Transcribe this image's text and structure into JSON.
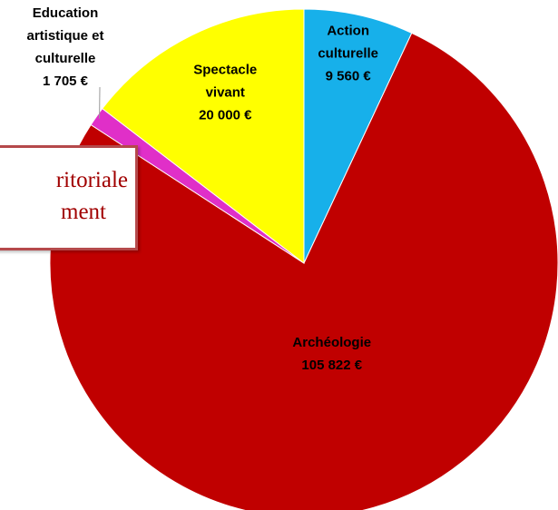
{
  "chart_data": {
    "type": "pie",
    "categories": [
      "Action culturelle",
      "Archéologie",
      "Education artistique et culturelle",
      "Spectacle vivant"
    ],
    "values": [
      9560,
      105822,
      1705,
      20000
    ],
    "value_labels": [
      "9 560 €",
      "105 822 €",
      "1 705 €",
      "20 000 €"
    ],
    "colors": [
      "#17b0ea",
      "#c00000",
      "#e02fc8",
      "#ffff00"
    ],
    "annotation": [
      "ritoriale",
      "ment"
    ]
  }
}
